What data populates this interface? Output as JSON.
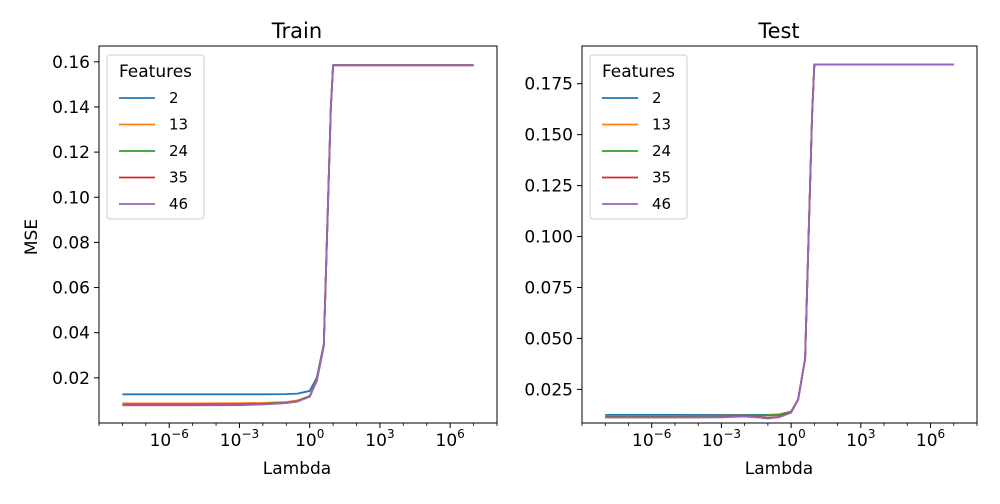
{
  "chart_data": [
    {
      "type": "line",
      "title": "Train",
      "xlabel": "Lambda",
      "ylabel": "MSE",
      "xscale": "log",
      "xlim": [
        1e-09,
        100000000.0
      ],
      "ylim": [
        0.0,
        0.167
      ],
      "yticks": [
        0.02,
        0.04,
        0.06,
        0.08,
        0.1,
        0.12,
        0.14,
        0.16
      ],
      "ytick_labels": [
        "0.02",
        "0.04",
        "0.06",
        "0.08",
        "0.10",
        "0.12",
        "0.14",
        "0.16"
      ],
      "xticks": [
        -6,
        -3,
        0,
        3,
        6
      ],
      "xtick_labels": [
        "-6",
        "-3",
        "0",
        "3",
        "6"
      ],
      "legend": {
        "title": "Features",
        "placement": "top-left"
      },
      "x": [
        1e-08,
        1e-05,
        0.001,
        0.01,
        0.1,
        0.3,
        1,
        2,
        4,
        8,
        10,
        20,
        10000000.0
      ],
      "series": [
        {
          "name": "2",
          "color": "#1f77b4",
          "values": [
            0.0127,
            0.0127,
            0.0127,
            0.0127,
            0.0128,
            0.013,
            0.0142,
            0.02,
            0.035,
            0.14,
            0.1585,
            0.1585,
            0.1585
          ]
        },
        {
          "name": "13",
          "color": "#ff7f0e",
          "values": [
            0.0087,
            0.0087,
            0.0088,
            0.0089,
            0.0093,
            0.01,
            0.012,
            0.019,
            0.0345,
            0.14,
            0.1585,
            0.1585,
            0.1585
          ]
        },
        {
          "name": "24",
          "color": "#2ca02c",
          "values": [
            0.0083,
            0.0083,
            0.0083,
            0.0085,
            0.009,
            0.0097,
            0.0118,
            0.0188,
            0.0343,
            0.14,
            0.1585,
            0.1585,
            0.1585
          ]
        },
        {
          "name": "35",
          "color": "#d62728",
          "values": [
            0.008,
            0.008,
            0.0081,
            0.0083,
            0.0089,
            0.0096,
            0.0117,
            0.0187,
            0.0342,
            0.14,
            0.1585,
            0.1585,
            0.1585
          ]
        },
        {
          "name": "46",
          "color": "#9467bd",
          "values": [
            0.0078,
            0.0078,
            0.0079,
            0.0082,
            0.0088,
            0.0095,
            0.0116,
            0.0186,
            0.0341,
            0.14,
            0.1585,
            0.1585,
            0.1585
          ]
        }
      ]
    },
    {
      "type": "line",
      "title": "Test",
      "xlabel": "Lambda",
      "ylabel": "",
      "xscale": "log",
      "xlim": [
        1e-09,
        100000000.0
      ],
      "ylim": [
        0.0085,
        0.1935
      ],
      "yticks": [
        0.025,
        0.05,
        0.075,
        0.1,
        0.125,
        0.15,
        0.175
      ],
      "ytick_labels": [
        "0.025",
        "0.050",
        "0.075",
        "0.100",
        "0.125",
        "0.150",
        "0.175"
      ],
      "xticks": [
        -6,
        -3,
        0,
        3,
        6
      ],
      "xtick_labels": [
        "-6",
        "-3",
        "0",
        "3",
        "6"
      ],
      "legend": {
        "title": "Features",
        "placement": "top-left"
      },
      "x": [
        1e-08,
        1e-05,
        0.001,
        0.01,
        0.03,
        0.1,
        0.3,
        1,
        2,
        4,
        8,
        10,
        20,
        10000000.0
      ],
      "series": [
        {
          "name": "2",
          "color": "#1f77b4",
          "values": [
            0.0125,
            0.0125,
            0.0125,
            0.0125,
            0.0125,
            0.0125,
            0.0127,
            0.014,
            0.02,
            0.04,
            0.16,
            0.1845,
            0.1845,
            0.1845
          ]
        },
        {
          "name": "13",
          "color": "#ff7f0e",
          "values": [
            0.012,
            0.012,
            0.0121,
            0.0122,
            0.0122,
            0.0123,
            0.0126,
            0.0142,
            0.0202,
            0.04,
            0.16,
            0.1845,
            0.1845,
            0.1845
          ]
        },
        {
          "name": "24",
          "color": "#2ca02c",
          "values": [
            0.0118,
            0.0118,
            0.0119,
            0.0121,
            0.0122,
            0.0122,
            0.0124,
            0.014,
            0.02,
            0.04,
            0.16,
            0.1845,
            0.1845,
            0.1845
          ]
        },
        {
          "name": "35",
          "color": "#d62728",
          "values": [
            0.0113,
            0.0113,
            0.0114,
            0.0118,
            0.0115,
            0.011,
            0.0115,
            0.0137,
            0.02,
            0.04,
            0.16,
            0.1845,
            0.1845,
            0.1845
          ]
        },
        {
          "name": "46",
          "color": "#9467bd",
          "values": [
            0.0112,
            0.0112,
            0.0113,
            0.0117,
            0.0113,
            0.0107,
            0.0113,
            0.0136,
            0.0199,
            0.04,
            0.16,
            0.1845,
            0.1845,
            0.1845
          ]
        }
      ]
    }
  ]
}
